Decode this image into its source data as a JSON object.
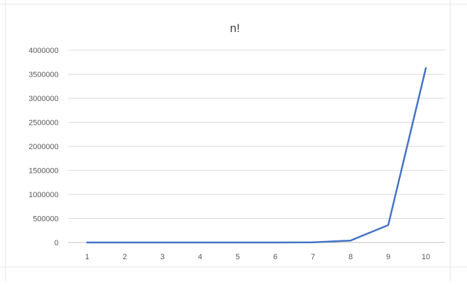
{
  "chart_data": {
    "type": "line",
    "title": "n!",
    "x": [
      1,
      2,
      3,
      4,
      5,
      6,
      7,
      8,
      9,
      10
    ],
    "series": [
      {
        "values": [
          1,
          2,
          6,
          24,
          120,
          720,
          5040,
          40320,
          362880,
          3628800
        ]
      }
    ],
    "y_ticks": [
      "0",
      "500000",
      "1000000",
      "1500000",
      "2000000",
      "2500000",
      "3000000",
      "3500000",
      "4000000"
    ],
    "x_ticks": [
      "1",
      "2",
      "3",
      "4",
      "5",
      "6",
      "7",
      "8",
      "9",
      "10"
    ],
    "ylim": [
      0,
      4000000
    ],
    "grid": "horizontal",
    "legend": "none",
    "colors": {
      "line": "#4472c4",
      "grid": "#d9d9d9",
      "text": "#595959",
      "title": "#404040"
    }
  }
}
